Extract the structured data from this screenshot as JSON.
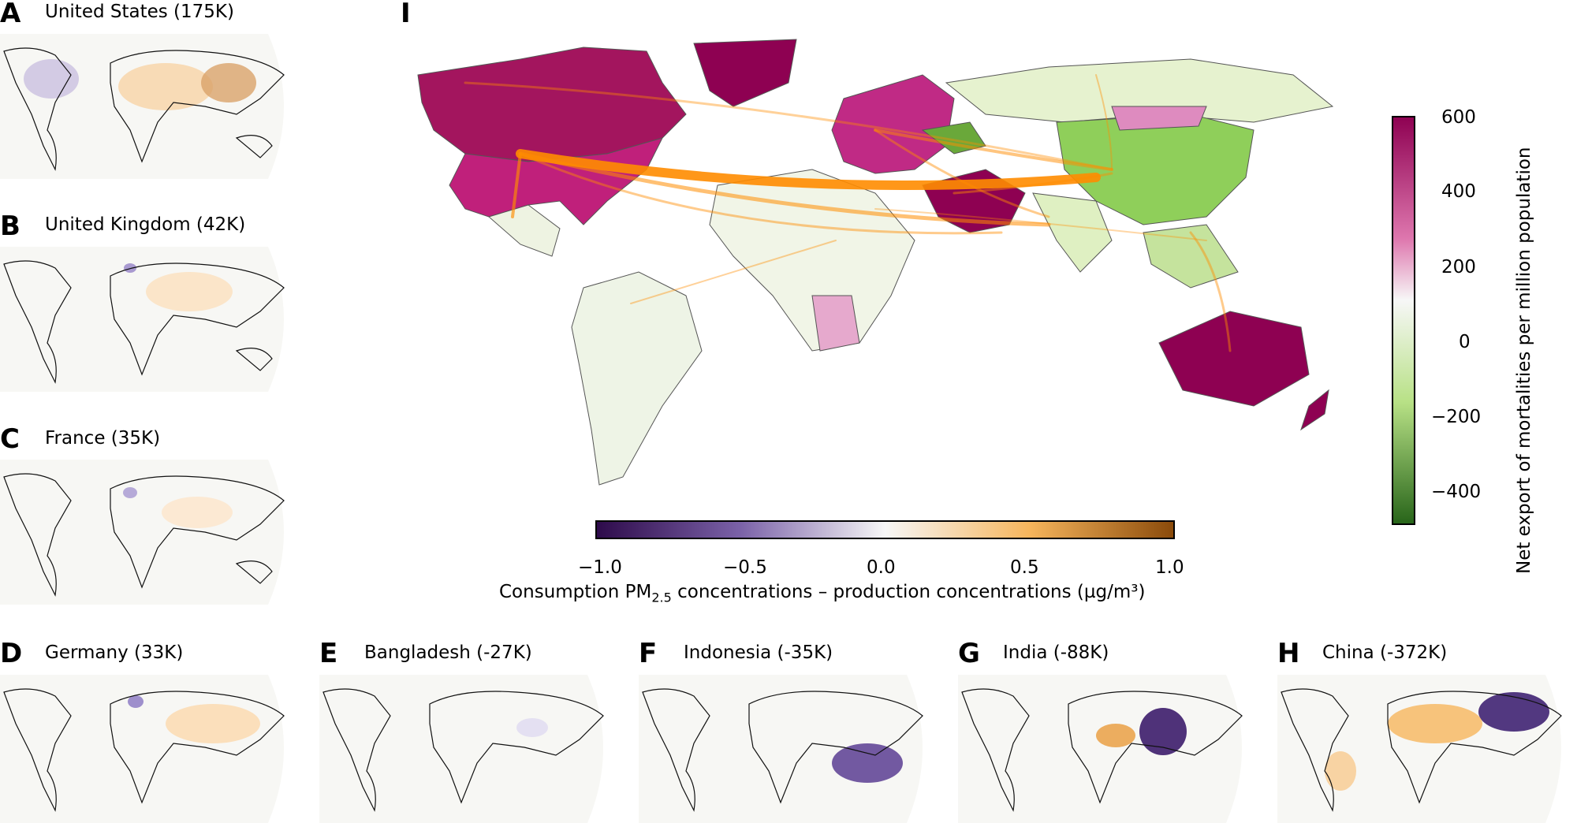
{
  "panels": [
    {
      "letter": "A",
      "title": "United States  (175K)"
    },
    {
      "letter": "B",
      "title": "United Kingdom (42K)"
    },
    {
      "letter": "C",
      "title": "France (35K)"
    },
    {
      "letter": "D",
      "title": "Germany (33K)"
    },
    {
      "letter": "E",
      "title": "Bangladesh (-27K)"
    },
    {
      "letter": "F",
      "title": "Indonesia (-35K)"
    },
    {
      "letter": "G",
      "title": "India (-88K)"
    },
    {
      "letter": "H",
      "title": "China (-372K)"
    },
    {
      "letter": "I",
      "title": ""
    }
  ],
  "horizontal_colorbar": {
    "ticks": [
      "−1.0",
      "−0.5",
      "0.0",
      "0.5",
      "1.0"
    ],
    "label_main": "Consumption PM",
    "label_sub": "2.5",
    "label_rest": " concentrations – production concentrations (µg/m³)",
    "colors": [
      "#2d0a4a",
      "#7b62a8",
      "#f7f7f7",
      "#f6b55c",
      "#8a4a0a"
    ]
  },
  "vertical_colorbar": {
    "ticks": [
      "600",
      "400",
      "200",
      "0",
      "−200",
      "−400"
    ],
    "label": "Net export of mortalities per million population",
    "colors": [
      "#8e0152",
      "#de77ae",
      "#f7f7f7",
      "#b8e186",
      "#276419"
    ]
  },
  "colors": {
    "flow_arrow": "#ff8c00",
    "high_export": "#a3155e",
    "low_export": "#8fcf5a",
    "land_neutral": "#f3f6ea"
  }
}
